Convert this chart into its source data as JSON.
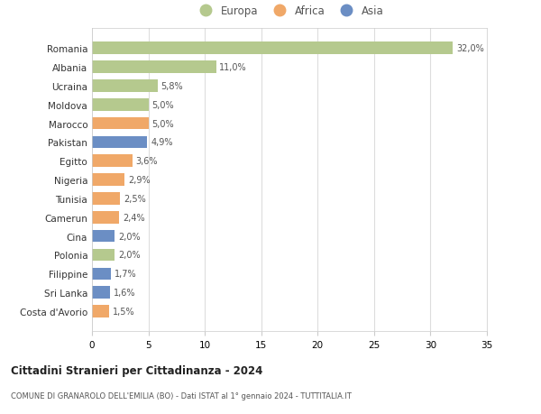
{
  "countries": [
    "Romania",
    "Albania",
    "Ucraina",
    "Moldova",
    "Marocco",
    "Pakistan",
    "Egitto",
    "Nigeria",
    "Tunisia",
    "Camerun",
    "Cina",
    "Polonia",
    "Filippine",
    "Sri Lanka",
    "Costa d'Avorio"
  ],
  "values": [
    32.0,
    11.0,
    5.8,
    5.0,
    5.0,
    4.9,
    3.6,
    2.9,
    2.5,
    2.4,
    2.0,
    2.0,
    1.7,
    1.6,
    1.5
  ],
  "continents": [
    "Europa",
    "Europa",
    "Europa",
    "Europa",
    "Africa",
    "Asia",
    "Africa",
    "Africa",
    "Africa",
    "Africa",
    "Asia",
    "Europa",
    "Asia",
    "Asia",
    "Africa"
  ],
  "colors": {
    "Europa": "#b5c98e",
    "Africa": "#f0a868",
    "Asia": "#6b8ec4"
  },
  "title": "Cittadini Stranieri per Cittadinanza - 2024",
  "subtitle": "COMUNE DI GRANAROLO DELL'EMILIA (BO) - Dati ISTAT al 1° gennaio 2024 - TUTTITALIA.IT",
  "xlim": [
    0,
    35
  ],
  "xticks": [
    0,
    5,
    10,
    15,
    20,
    25,
    30,
    35
  ],
  "background_color": "#ffffff",
  "grid_color": "#e0e0e0"
}
